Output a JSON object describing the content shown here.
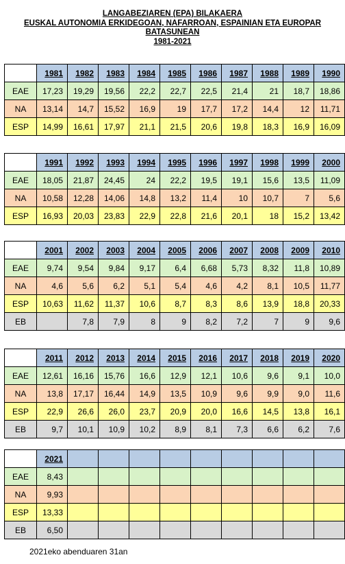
{
  "titles": [
    "LANGABEZIAREN (EPA) BILAKAERA",
    "EUSKAL AUTONOMIA ERKIDEGOAN, NAFARROAN, ESPAINIAN ETA EUROPAR",
    "BATASUNEAN",
    "1981-2021"
  ],
  "tables": [
    {
      "years": [
        "1981",
        "1982",
        "1983",
        "1984",
        "1985",
        "1986",
        "1987",
        "1988",
        "1989",
        "1990"
      ],
      "rows": [
        {
          "label": "EAE",
          "values": [
            "17,23",
            "19,29",
            "19,56",
            "22,2",
            "22,7",
            "22,5",
            "21,4",
            "21",
            "18,7",
            "18,86"
          ]
        },
        {
          "label": "NA",
          "values": [
            "13,14",
            "14,7",
            "15,52",
            "16,9",
            "19",
            "17,7",
            "17,2",
            "14,4",
            "12",
            "11,71"
          ]
        },
        {
          "label": "ESP",
          "values": [
            "14,99",
            "16,61",
            "17,97",
            "21,1",
            "21,5",
            "20,6",
            "19,8",
            "18,3",
            "16,9",
            "16,09"
          ]
        }
      ]
    },
    {
      "years": [
        "1991",
        "1992",
        "1993",
        "1994",
        "1995",
        "1996",
        "1997",
        "1998",
        "1999",
        "2000"
      ],
      "rows": [
        {
          "label": "EAE",
          "values": [
            "18,05",
            "21,87",
            "24,45",
            "24",
            "22,2",
            "19,5",
            "19,1",
            "15,6",
            "13,5",
            "11,09"
          ]
        },
        {
          "label": "NA",
          "values": [
            "10,58",
            "12,28",
            "14,06",
            "14,8",
            "13,2",
            "11,4",
            "10",
            "10,7",
            "7",
            "5,6"
          ]
        },
        {
          "label": "ESP",
          "values": [
            "16,93",
            "20,03",
            "23,83",
            "22,9",
            "22,8",
            "21,6",
            "20,1",
            "18",
            "15,2",
            "13,42"
          ]
        }
      ]
    },
    {
      "years": [
        "2001",
        "2002",
        "2003",
        "2004",
        "2005",
        "2006",
        "2007",
        "2008",
        "2009",
        "2010"
      ],
      "rows": [
        {
          "label": "EAE",
          "values": [
            "9,74",
            "9,54",
            "9,84",
            "9,17",
            "6,4",
            "6,68",
            "5,73",
            "8,32",
            "11,8",
            "10,89"
          ]
        },
        {
          "label": "NA",
          "values": [
            "4,6",
            "5,6",
            "6,2",
            "5,1",
            "5,4",
            "4,6",
            "4,2",
            "8,1",
            "10,5",
            "11,77"
          ]
        },
        {
          "label": "ESP",
          "values": [
            "10,63",
            "11,62",
            "11,37",
            "10,6",
            "8,7",
            "8,3",
            "8,6",
            "13,9",
            "18,8",
            "20,33"
          ]
        },
        {
          "label": "EB",
          "values": [
            "",
            "7,8",
            "7,9",
            "8",
            "9",
            "8,2",
            "7,2",
            "7",
            "9",
            "9,6"
          ]
        }
      ]
    },
    {
      "years": [
        "2011",
        "2012",
        "2013",
        "2014",
        "2015",
        "2016",
        "2017",
        "2018",
        "2019",
        "2020"
      ],
      "rows": [
        {
          "label": "EAE",
          "values": [
            "12,61",
            "16,16",
            "15,76",
            "16,6",
            "12,9",
            "12,1",
            "10,6",
            "9,6",
            "9,1",
            "10,0"
          ]
        },
        {
          "label": "NA",
          "values": [
            "13,8",
            "17,17",
            "16,44",
            "14,9",
            "13,5",
            "10,9",
            "9,6",
            "9,9",
            "9,0",
            "11,6"
          ]
        },
        {
          "label": "ESP",
          "values": [
            "22,9",
            "26,6",
            "26,0",
            "23,7",
            "20,9",
            "20,0",
            "16,6",
            "14,5",
            "13,8",
            "16,1"
          ]
        },
        {
          "label": "EB",
          "values": [
            "9,7",
            "10,1",
            "10,9",
            "10,2",
            "8,9",
            "8,1",
            "7,3",
            "6,6",
            "6,2",
            "7,6"
          ]
        }
      ]
    },
    {
      "years": [
        "2021",
        "",
        "",
        "",
        "",
        "",
        "",
        "",
        "",
        ""
      ],
      "rows": [
        {
          "label": "EAE",
          "values": [
            "8,43",
            "",
            "",
            "",
            "",
            "",
            "",
            "",
            "",
            ""
          ]
        },
        {
          "label": "NA",
          "values": [
            "9,93",
            "",
            "",
            "",
            "",
            "",
            "",
            "",
            "",
            ""
          ]
        },
        {
          "label": "ESP",
          "values": [
            "13,33",
            "",
            "",
            "",
            "",
            "",
            "",
            "",
            "",
            ""
          ]
        },
        {
          "label": "EB",
          "values": [
            "6,50",
            "",
            "",
            "",
            "",
            "",
            "",
            "",
            "",
            ""
          ]
        }
      ]
    }
  ],
  "footer": "2021eko abenduaren 31an"
}
